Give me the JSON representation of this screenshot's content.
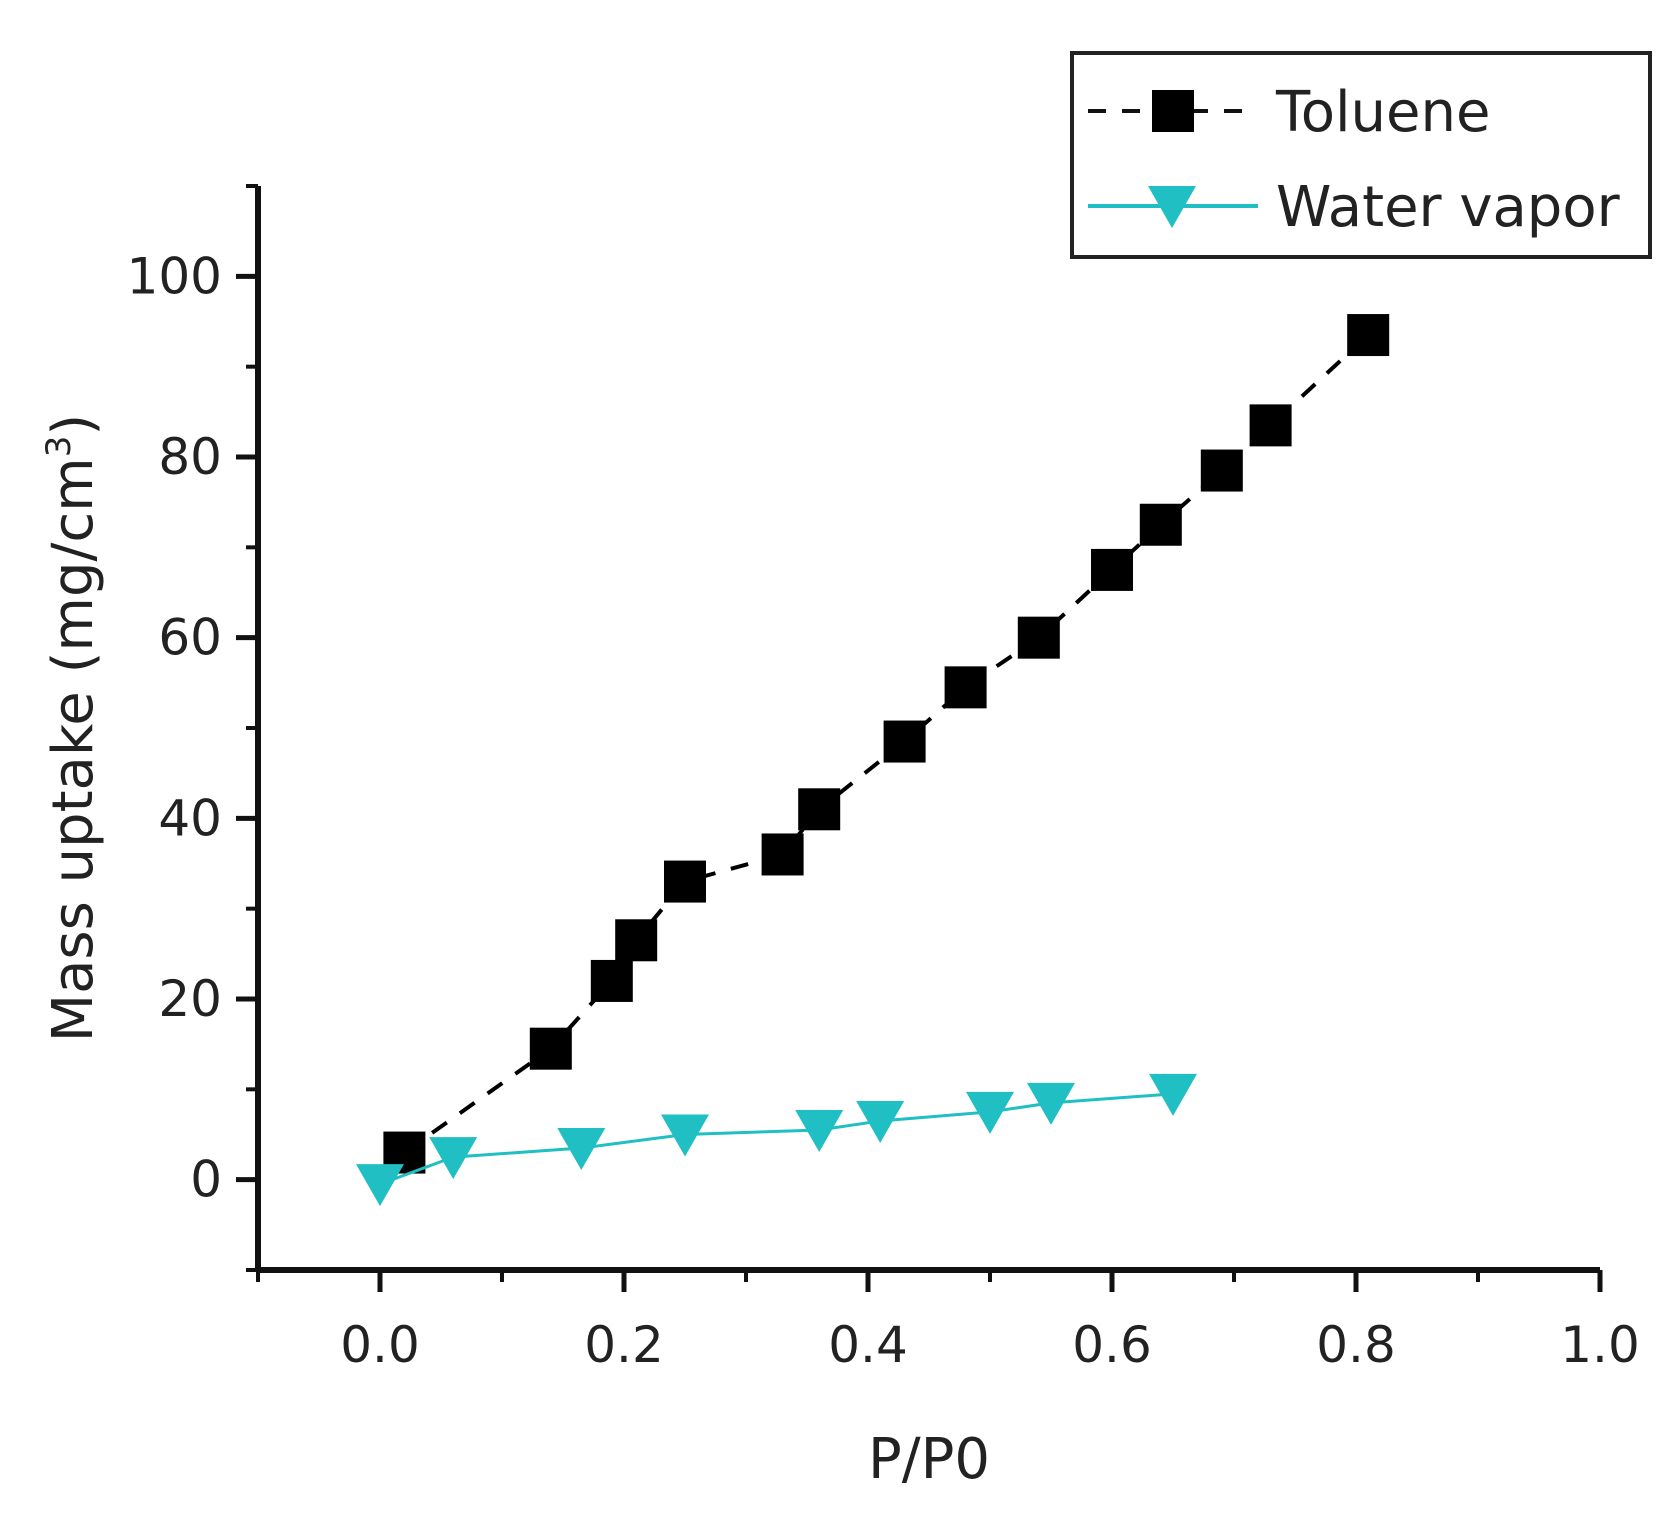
{
  "chart_data": {
    "type": "line",
    "xlabel": "P/P0",
    "ylabel": {
      "text": "Mass uptake (mg/cm",
      "superscript": "3",
      "suffix": ")"
    },
    "xlim": [
      -0.1,
      1.0
    ],
    "ylim": [
      -10,
      110
    ],
    "x_ticks": [
      0.0,
      0.2,
      0.4,
      0.6,
      0.8,
      1.0
    ],
    "x_tick_labels": [
      "0.0",
      "0.2",
      "0.4",
      "0.6",
      "0.8",
      "1.0"
    ],
    "y_ticks": [
      0,
      20,
      40,
      60,
      80,
      100
    ],
    "y_tick_labels": [
      "0",
      "20",
      "40",
      "60",
      "80",
      "100"
    ],
    "grid": false,
    "legend": {
      "position": "top-right",
      "boxed": true
    },
    "series": [
      {
        "name": "Toluene",
        "marker": "square",
        "line_style": "dashed",
        "color": "#000000",
        "x": [
          0.02,
          0.14,
          0.19,
          0.21,
          0.25,
          0.33,
          0.36,
          0.43,
          0.48,
          0.54,
          0.6,
          0.64,
          0.69,
          0.73,
          0.81
        ],
        "y": [
          3,
          14.5,
          22,
          26.5,
          33,
          36,
          41,
          48.5,
          54.5,
          60,
          67.5,
          72.5,
          78.5,
          83.5,
          93.5
        ]
      },
      {
        "name": "Water vapor",
        "marker": "triangle-down",
        "line_style": "solid",
        "color": "#1fbfc4",
        "x": [
          0.0,
          0.06,
          0.165,
          0.25,
          0.36,
          0.41,
          0.5,
          0.55,
          0.65
        ],
        "y": [
          -0.5,
          2.5,
          3.5,
          5,
          5.5,
          6.5,
          7.5,
          8.5,
          9.5
        ]
      }
    ]
  }
}
